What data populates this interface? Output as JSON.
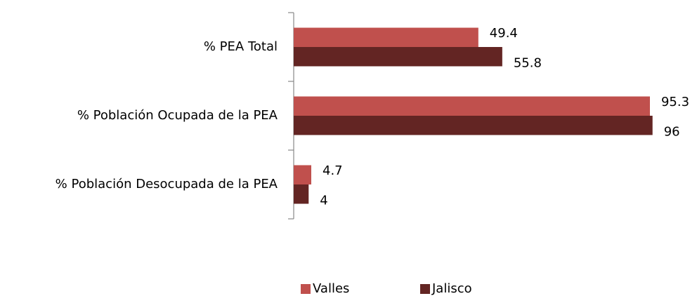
{
  "chart_data": {
    "type": "hbar",
    "categories": [
      "% PEA Total",
      "% Población Ocupada de la PEA",
      "% Población Desocupada de la PEA"
    ],
    "series": [
      {
        "name": "Valles",
        "color": "#c0504d",
        "values": [
          49.4,
          95.3,
          4.7
        ]
      },
      {
        "name": "Jalisco",
        "color": "#632523",
        "values": [
          55.8,
          96,
          4
        ]
      }
    ],
    "xlim": [
      0,
      100
    ],
    "legend": "bottom"
  }
}
